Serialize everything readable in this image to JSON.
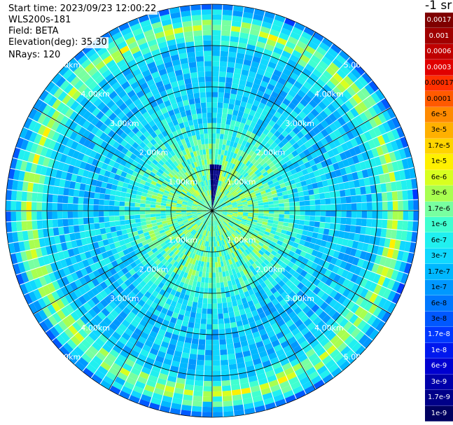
{
  "info": {
    "start_time": "Start time: 2023/09/23 12:00:22",
    "instrument": "WLS200s-181",
    "field": "Field: BETA",
    "elevation": "Elevation(deg): 35.30",
    "nrays": "NRays: 120"
  },
  "colorbar": {
    "unit": "-1 sr",
    "labels": [
      "0.0017",
      "0.001",
      "0.0006",
      "0.0003",
      "0.00017",
      "0.0001",
      "6e-5",
      "3e-5",
      "1.7e-5",
      "1e-5",
      "6e-6",
      "3e-6",
      "1.7e-6",
      "1e-6",
      "6e-7",
      "3e-7",
      "1.7e-7",
      "1e-7",
      "6e-8",
      "3e-8",
      "1.7e-8",
      "1e-8",
      "6e-9",
      "3e-9",
      "1.7e-9",
      "1e-9"
    ],
    "colors": [
      "#7f0000",
      "#a00000",
      "#c00000",
      "#e00000",
      "#ff3000",
      "#ff5a00",
      "#ff8a00",
      "#ffb000",
      "#ffd400",
      "#fff000",
      "#d8ff20",
      "#a8ff50",
      "#78ffa0",
      "#40ffd0",
      "#20f0f0",
      "#10d8ff",
      "#00b8ff",
      "#0098ff",
      "#0078ff",
      "#0058ff",
      "#0038ff",
      "#0018ee",
      "#0000d0",
      "#0000aa",
      "#000088",
      "#000060"
    ],
    "light_text_below_index": 4
  },
  "chart_data": {
    "type": "heatmap",
    "projection": "polar-ppi",
    "field": "BETA",
    "units": "sr-1",
    "nrays": 120,
    "max_range_km": 5.0,
    "range_rings_km": [
      1.0,
      2.0,
      3.0,
      4.0,
      5.0
    ],
    "ring_labels": [
      "1.00km",
      "2.00km",
      "3.00km",
      "4.00km",
      "5.00km"
    ],
    "spoke_interval_deg": 30,
    "range_profile": [
      {
        "range_km": 0.0,
        "beta": 1e-06
      },
      {
        "range_km": 0.5,
        "beta": 1.7e-06
      },
      {
        "range_km": 1.0,
        "beta": 1.5e-06
      },
      {
        "range_km": 1.5,
        "beta": 1.2e-06
      },
      {
        "range_km": 2.0,
        "beta": 6e-07
      },
      {
        "range_km": 2.5,
        "beta": 3e-07
      },
      {
        "range_km": 3.0,
        "beta": 2.5e-07
      },
      {
        "range_km": 3.5,
        "beta": 2e-07
      },
      {
        "range_km": 4.0,
        "beta": 2.5e-07
      },
      {
        "range_km": 4.45,
        "beta": 3e-06
      },
      {
        "range_km": 4.8,
        "beta": 3e-07
      },
      {
        "range_km": 5.0,
        "beta": 3e-08
      }
    ],
    "colorbar_min": 1e-09,
    "colorbar_max": 0.0017
  }
}
